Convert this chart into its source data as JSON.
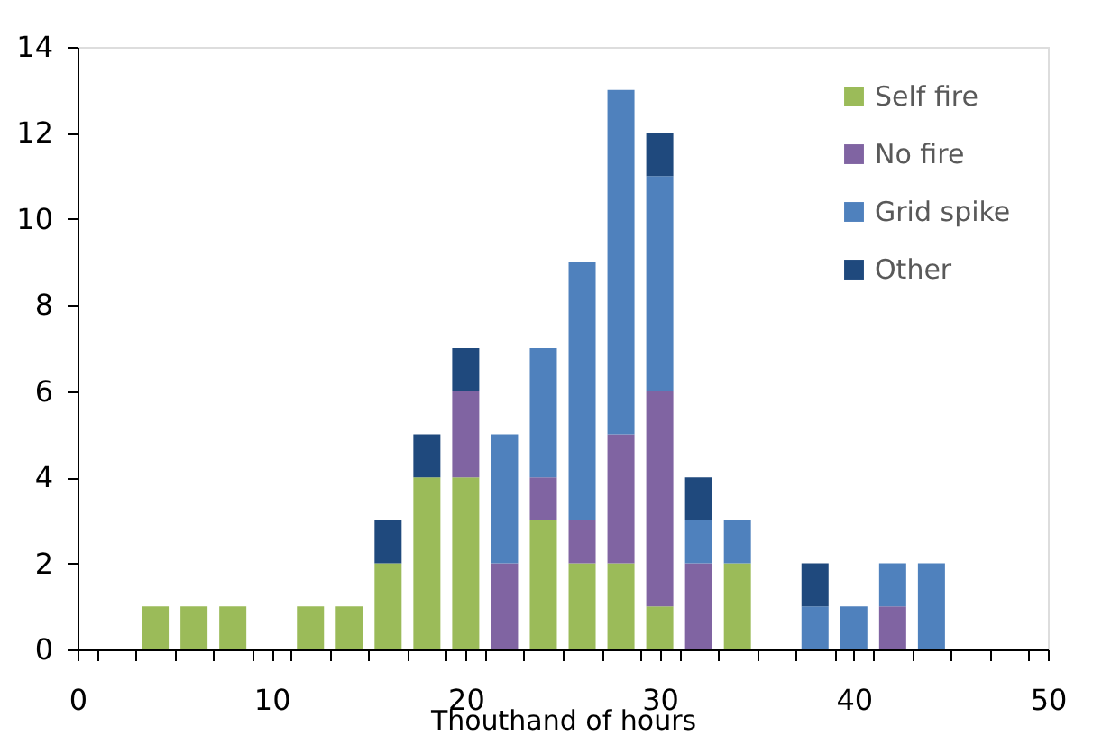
{
  "chart_data": {
    "type": "bar",
    "stacked": true,
    "xlabel": "Thouthand of hours",
    "x": [
      4,
      6,
      8,
      10,
      12,
      14,
      16,
      18,
      20,
      22,
      24,
      26,
      28,
      30,
      32,
      34,
      36,
      38,
      40,
      42,
      44
    ],
    "series": [
      {
        "name": "Self fire",
        "color": "#9bbb59",
        "values": [
          1,
          1,
          1,
          0,
          1,
          1,
          2,
          4,
          4,
          0,
          3,
          2,
          2,
          1,
          0,
          2,
          0,
          0,
          0,
          0,
          0
        ]
      },
      {
        "name": "No fire",
        "color": "#8064a2",
        "values": [
          0,
          0,
          0,
          0,
          0,
          0,
          0,
          0,
          2,
          2,
          1,
          1,
          3,
          5,
          2,
          0,
          0,
          0,
          0,
          1,
          0
        ]
      },
      {
        "name": "Grid spike",
        "color": "#4f81bd",
        "values": [
          0,
          0,
          0,
          0,
          0,
          0,
          0,
          0,
          0,
          3,
          3,
          6,
          8,
          5,
          1,
          1,
          0,
          1,
          1,
          1,
          2
        ]
      },
      {
        "name": "Other",
        "color": "#1f497d",
        "values": [
          0,
          0,
          0,
          0,
          0,
          0,
          1,
          1,
          1,
          0,
          0,
          0,
          0,
          1,
          1,
          0,
          0,
          1,
          0,
          0,
          0
        ]
      }
    ],
    "xlim": [
      0,
      50
    ],
    "xticks": [
      0,
      {
        "value": 1,
        "label": null
      },
      {
        "value": 3,
        "label": null
      },
      {
        "value": 5,
        "label": null
      },
      {
        "value": 7,
        "label": null
      },
      {
        "value": 9,
        "label": null
      },
      10,
      {
        "value": 11,
        "label": null
      },
      {
        "value": 13,
        "label": null
      },
      {
        "value": 15,
        "label": null
      },
      {
        "value": 17,
        "label": null
      },
      {
        "value": 19,
        "label": null
      },
      20,
      {
        "value": 21,
        "label": null
      },
      {
        "value": 23,
        "label": null
      },
      {
        "value": 25,
        "label": null
      },
      {
        "value": 27,
        "label": null
      },
      {
        "value": 29,
        "label": null
      },
      30,
      {
        "value": 31,
        "label": null
      },
      {
        "value": 33,
        "label": null
      },
      {
        "value": 35,
        "label": null
      },
      {
        "value": 37,
        "label": null
      },
      {
        "value": 39,
        "label": null
      },
      40,
      {
        "value": 41,
        "label": null
      },
      {
        "value": 43,
        "label": null
      },
      {
        "value": 45,
        "label": null
      },
      {
        "value": 47,
        "label": null
      },
      {
        "value": 49,
        "label": null
      },
      50
    ],
    "ylim": [
      0,
      14
    ],
    "yticks": [
      0,
      2,
      4,
      6,
      8,
      10,
      12,
      14
    ],
    "grid": false,
    "legend": "top right"
  }
}
